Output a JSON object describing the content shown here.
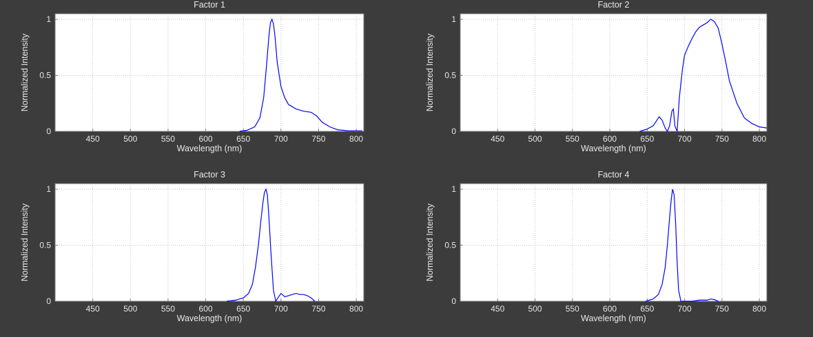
{
  "colors": {
    "background": "#3c3c3c",
    "plot": "#ffffff",
    "series": "#0000ff",
    "text": "#e6e6e6"
  },
  "chart_data": [
    {
      "type": "line",
      "title": "Factor 1",
      "xlabel": "Wavelength (nm)",
      "ylabel": "Normalized Intensity",
      "xlim": [
        400,
        810
      ],
      "ylim": [
        0,
        1.05
      ],
      "xticks": [
        450,
        500,
        550,
        600,
        650,
        700,
        750,
        800
      ],
      "yticks": [
        0,
        0.5,
        1
      ],
      "ytick_labels": [
        "0",
        "0.5",
        "1"
      ],
      "grid": true,
      "x": [
        645,
        655,
        665,
        672,
        677,
        681,
        684,
        686,
        688,
        690,
        692,
        695,
        700,
        705,
        710,
        720,
        730,
        740,
        747,
        755,
        765,
        775,
        790,
        808
      ],
      "y": [
        0,
        0.01,
        0.04,
        0.12,
        0.3,
        0.6,
        0.85,
        0.97,
        1.0,
        0.96,
        0.85,
        0.62,
        0.4,
        0.3,
        0.24,
        0.2,
        0.18,
        0.17,
        0.14,
        0.08,
        0.04,
        0.015,
        0.005,
        0.005
      ]
    },
    {
      "type": "line",
      "title": "Factor 2",
      "xlabel": "Wavelength (nm)",
      "ylabel": "Normalized Intensity",
      "xlim": [
        400,
        810
      ],
      "ylim": [
        0,
        1.05
      ],
      "xticks": [
        450,
        500,
        550,
        600,
        650,
        700,
        750,
        800
      ],
      "yticks": [
        0,
        0.5,
        1
      ],
      "ytick_labels": [
        "0",
        "0.5",
        "1"
      ],
      "grid": true,
      "x": [
        640,
        650,
        658,
        663,
        666,
        670,
        674,
        677,
        680,
        683,
        685,
        687,
        690,
        693,
        697,
        700,
        705,
        710,
        715,
        720,
        725,
        730,
        735,
        740,
        745,
        750,
        755,
        760,
        770,
        780,
        790,
        800,
        810
      ],
      "y": [
        0,
        0.02,
        0.05,
        0.1,
        0.13,
        0.1,
        0.03,
        0.0,
        0.05,
        0.18,
        0.2,
        0.05,
        0.0,
        0.3,
        0.55,
        0.68,
        0.76,
        0.83,
        0.89,
        0.93,
        0.95,
        0.97,
        1.0,
        0.98,
        0.92,
        0.78,
        0.62,
        0.45,
        0.25,
        0.12,
        0.07,
        0.04,
        0.03
      ]
    },
    {
      "type": "line",
      "title": "Factor 3",
      "xlabel": "Wavelength (nm)",
      "ylabel": "Normalized Intensity",
      "xlim": [
        400,
        810
      ],
      "ylim": [
        0,
        1.05
      ],
      "xticks": [
        450,
        500,
        550,
        600,
        650,
        700,
        750,
        800
      ],
      "yticks": [
        0,
        0.5,
        1
      ],
      "ytick_labels": [
        "0",
        "0.5",
        "1"
      ],
      "grid": true,
      "x": [
        628,
        640,
        650,
        657,
        662,
        666,
        670,
        673,
        676,
        678,
        680,
        682,
        684,
        687,
        690,
        693,
        696,
        700,
        705,
        710,
        715,
        720,
        725,
        730,
        735,
        740,
        745
      ],
      "y": [
        0,
        0.01,
        0.03,
        0.07,
        0.15,
        0.3,
        0.5,
        0.7,
        0.88,
        0.97,
        1.0,
        0.95,
        0.75,
        0.4,
        0.1,
        0.0,
        0.03,
        0.07,
        0.04,
        0.05,
        0.06,
        0.07,
        0.06,
        0.06,
        0.05,
        0.03,
        0.0
      ]
    },
    {
      "type": "line",
      "title": "Factor 4",
      "xlabel": "Wavelength (nm)",
      "ylabel": "Normalized Intensity",
      "xlim": [
        400,
        810
      ],
      "ylim": [
        0,
        1.05
      ],
      "xticks": [
        450,
        500,
        550,
        600,
        650,
        700,
        750,
        800
      ],
      "yticks": [
        0,
        0.5,
        1
      ],
      "ytick_labels": [
        "0",
        "0.5",
        "1"
      ],
      "grid": true,
      "x": [
        648,
        658,
        665,
        670,
        674,
        677,
        680,
        682,
        684,
        686,
        688,
        690,
        692,
        695,
        710,
        720,
        730,
        735,
        740,
        745
      ],
      "y": [
        0,
        0.02,
        0.06,
        0.15,
        0.3,
        0.5,
        0.75,
        0.9,
        1.0,
        0.95,
        0.7,
        0.35,
        0.1,
        0.0,
        0.0,
        0.01,
        0.01,
        0.02,
        0.015,
        0.0
      ]
    }
  ]
}
